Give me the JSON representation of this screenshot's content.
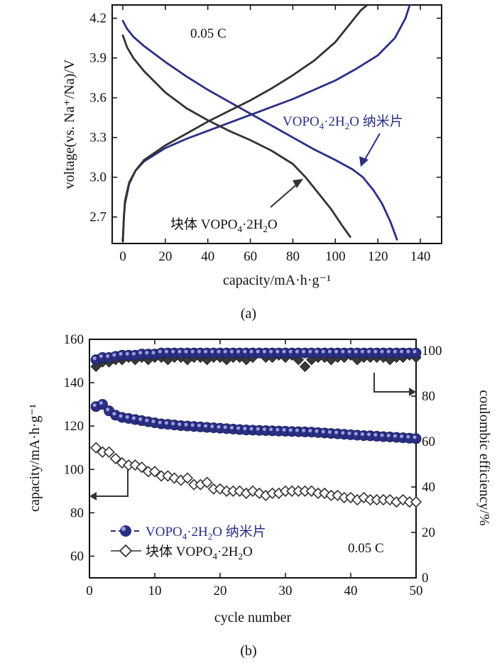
{
  "chart_data": [
    {
      "panel": "(a)",
      "type": "line",
      "xlabel": "capacity/mA·h·g⁻¹",
      "ylabel": "voltage(vs. Na⁺/Na)/V",
      "xlim": [
        -5,
        150
      ],
      "ylim": [
        2.5,
        4.3
      ],
      "xticks": [
        "0",
        "20",
        "40",
        "60",
        "80",
        "100",
        "120",
        "140"
      ],
      "yticks": [
        "2.7",
        "3.0",
        "3.3",
        "3.6",
        "3.9",
        "4.2"
      ],
      "annotations": {
        "rate": "0.05 C",
        "nano_label": {
          "base": "VOPO",
          "sub1": "4",
          "mid": "·2H",
          "sub2": "2",
          "tail": "O 纳米片"
        },
        "bulk_label": {
          "base": "块体 VOPO",
          "sub1": "4",
          "mid": "·2H",
          "sub2": "2",
          "tail": "O"
        }
      },
      "series": [
        {
          "name": "VOPO₄·2H₂O 纳米片 charge",
          "color": "#2a2f85",
          "points": [
            [
              0,
              2.52
            ],
            [
              0.5,
              2.7
            ],
            [
              1,
              2.8
            ],
            [
              3,
              2.95
            ],
            [
              6,
              3.05
            ],
            [
              10,
              3.12
            ],
            [
              20,
              3.22
            ],
            [
              30,
              3.29
            ],
            [
              40,
              3.35
            ],
            [
              50,
              3.41
            ],
            [
              60,
              3.47
            ],
            [
              70,
              3.53
            ],
            [
              80,
              3.59
            ],
            [
              90,
              3.66
            ],
            [
              100,
              3.73
            ],
            [
              110,
              3.82
            ],
            [
              120,
              3.92
            ],
            [
              128,
              4.05
            ],
            [
              133,
              4.2
            ],
            [
              135,
              4.3
            ]
          ]
        },
        {
          "name": "VOPO₄·2H₂O 纳米片 discharge",
          "color": "#2a2f85",
          "points": [
            [
              0,
              4.18
            ],
            [
              2,
              4.12
            ],
            [
              5,
              4.06
            ],
            [
              10,
              3.99
            ],
            [
              20,
              3.87
            ],
            [
              30,
              3.76
            ],
            [
              40,
              3.66
            ],
            [
              50,
              3.57
            ],
            [
              60,
              3.48
            ],
            [
              70,
              3.39
            ],
            [
              80,
              3.3
            ],
            [
              90,
              3.21
            ],
            [
              100,
              3.13
            ],
            [
              108,
              3.06
            ],
            [
              113,
              3.0
            ],
            [
              118,
              2.9
            ],
            [
              122,
              2.8
            ],
            [
              126,
              2.66
            ],
            [
              129,
              2.53
            ]
          ]
        },
        {
          "name": "块体 VOPO₄·2H₂O charge",
          "color": "#333333",
          "points": [
            [
              0,
              2.52
            ],
            [
              0.5,
              2.7
            ],
            [
              1,
              2.82
            ],
            [
              3,
              2.96
            ],
            [
              6,
              3.05
            ],
            [
              10,
              3.13
            ],
            [
              20,
              3.24
            ],
            [
              30,
              3.33
            ],
            [
              40,
              3.42
            ],
            [
              50,
              3.5
            ],
            [
              60,
              3.58
            ],
            [
              70,
              3.67
            ],
            [
              80,
              3.77
            ],
            [
              90,
              3.88
            ],
            [
              100,
              4.02
            ],
            [
              108,
              4.18
            ],
            [
              112,
              4.26
            ],
            [
              115,
              4.3
            ]
          ]
        },
        {
          "name": "块体 VOPO₄·2H₂O discharge",
          "color": "#333333",
          "points": [
            [
              0,
              4.07
            ],
            [
              2,
              3.98
            ],
            [
              5,
              3.9
            ],
            [
              10,
              3.8
            ],
            [
              20,
              3.64
            ],
            [
              30,
              3.52
            ],
            [
              40,
              3.43
            ],
            [
              50,
              3.35
            ],
            [
              60,
              3.28
            ],
            [
              70,
              3.2
            ],
            [
              80,
              3.1
            ],
            [
              86,
              3.0
            ],
            [
              92,
              2.88
            ],
            [
              98,
              2.76
            ],
            [
              103,
              2.64
            ],
            [
              107,
              2.55
            ]
          ]
        }
      ]
    },
    {
      "panel": "(b)",
      "type": "scatter",
      "xlabel": "cycle number",
      "ylabel": "capacity/mA·h·g⁻¹",
      "y2label": "coulombic efficiency/%",
      "xlim": [
        0,
        50
      ],
      "ylim": [
        50,
        160
      ],
      "y2lim": [
        0,
        105
      ],
      "xticks": [
        "0",
        "10",
        "20",
        "30",
        "40",
        "50"
      ],
      "yticks": [
        "60",
        "80",
        "100",
        "120",
        "140",
        "160"
      ],
      "y2ticks": [
        "0",
        "20",
        "40",
        "60",
        "80",
        "100"
      ],
      "legend": [
        {
          "base": "VOPO",
          "sub1": "4",
          "mid": "·2H",
          "sub2": "2",
          "tail": "O 纳米片",
          "marker": "filled-circle",
          "color": "#2a2f85"
        },
        {
          "base": "块体 VOPO",
          "sub1": "4",
          "mid": "·2H",
          "sub2": "2",
          "tail": "O",
          "marker": "open-diamond",
          "color": "#333333"
        }
      ],
      "rate_label": "0.05 C",
      "series": [
        {
          "name": "纳米片 capacity",
          "axis": "left",
          "values": [
            129,
            130,
            127,
            125,
            124,
            123.5,
            123,
            122.5,
            122,
            121.5,
            121,
            120.8,
            120.5,
            120.2,
            120,
            119.8,
            119.6,
            119.4,
            119.2,
            119,
            118.8,
            118.6,
            118.4,
            118.2,
            118.1,
            118,
            117.9,
            117.8,
            117.7,
            117.6,
            117.5,
            117.4,
            117.3,
            117.2,
            117,
            116.8,
            116.6,
            116.4,
            116.2,
            116,
            115.8,
            115.6,
            115.5,
            115.3,
            115.1,
            115,
            114.8,
            114.6,
            114.4,
            114.2
          ]
        },
        {
          "name": "块体 capacity",
          "axis": "left",
          "values": [
            110,
            108,
            108,
            105,
            103,
            102,
            102,
            101,
            99,
            99,
            97,
            97,
            96,
            95,
            96,
            93,
            93,
            94,
            91,
            91,
            90,
            90,
            90,
            89,
            90,
            89,
            88,
            89,
            89,
            90,
            90,
            90,
            90,
            90,
            89,
            89,
            88,
            88,
            87,
            87,
            86,
            87,
            86,
            86,
            86,
            86,
            85,
            86,
            85,
            85
          ]
        },
        {
          "name": "纳米片 efficiency",
          "axis": "right",
          "values": [
            96,
            97,
            97,
            97.5,
            98,
            98,
            98,
            98.5,
            98.5,
            98.5,
            99,
            99,
            99,
            99,
            99,
            99,
            99,
            99,
            99,
            99,
            99,
            99,
            99,
            99,
            99,
            99,
            99,
            99,
            99,
            99,
            99,
            99,
            99,
            99,
            99,
            99,
            99,
            99,
            99,
            99,
            99,
            99,
            99,
            99,
            99,
            99,
            99,
            99,
            99,
            99
          ]
        },
        {
          "name": "块体 efficiency",
          "axis": "right",
          "values": [
            93,
            95,
            95,
            96,
            96,
            97,
            96,
            97,
            96,
            97,
            97,
            96,
            97,
            97,
            96,
            97,
            97,
            96,
            97,
            97,
            96,
            97,
            97,
            96,
            97,
            99,
            97,
            97,
            98,
            97,
            98,
            96,
            93,
            96,
            97,
            97,
            96,
            97,
            97,
            98,
            96,
            97,
            97,
            97,
            97,
            96,
            97,
            97,
            98,
            97
          ]
        }
      ]
    }
  ]
}
